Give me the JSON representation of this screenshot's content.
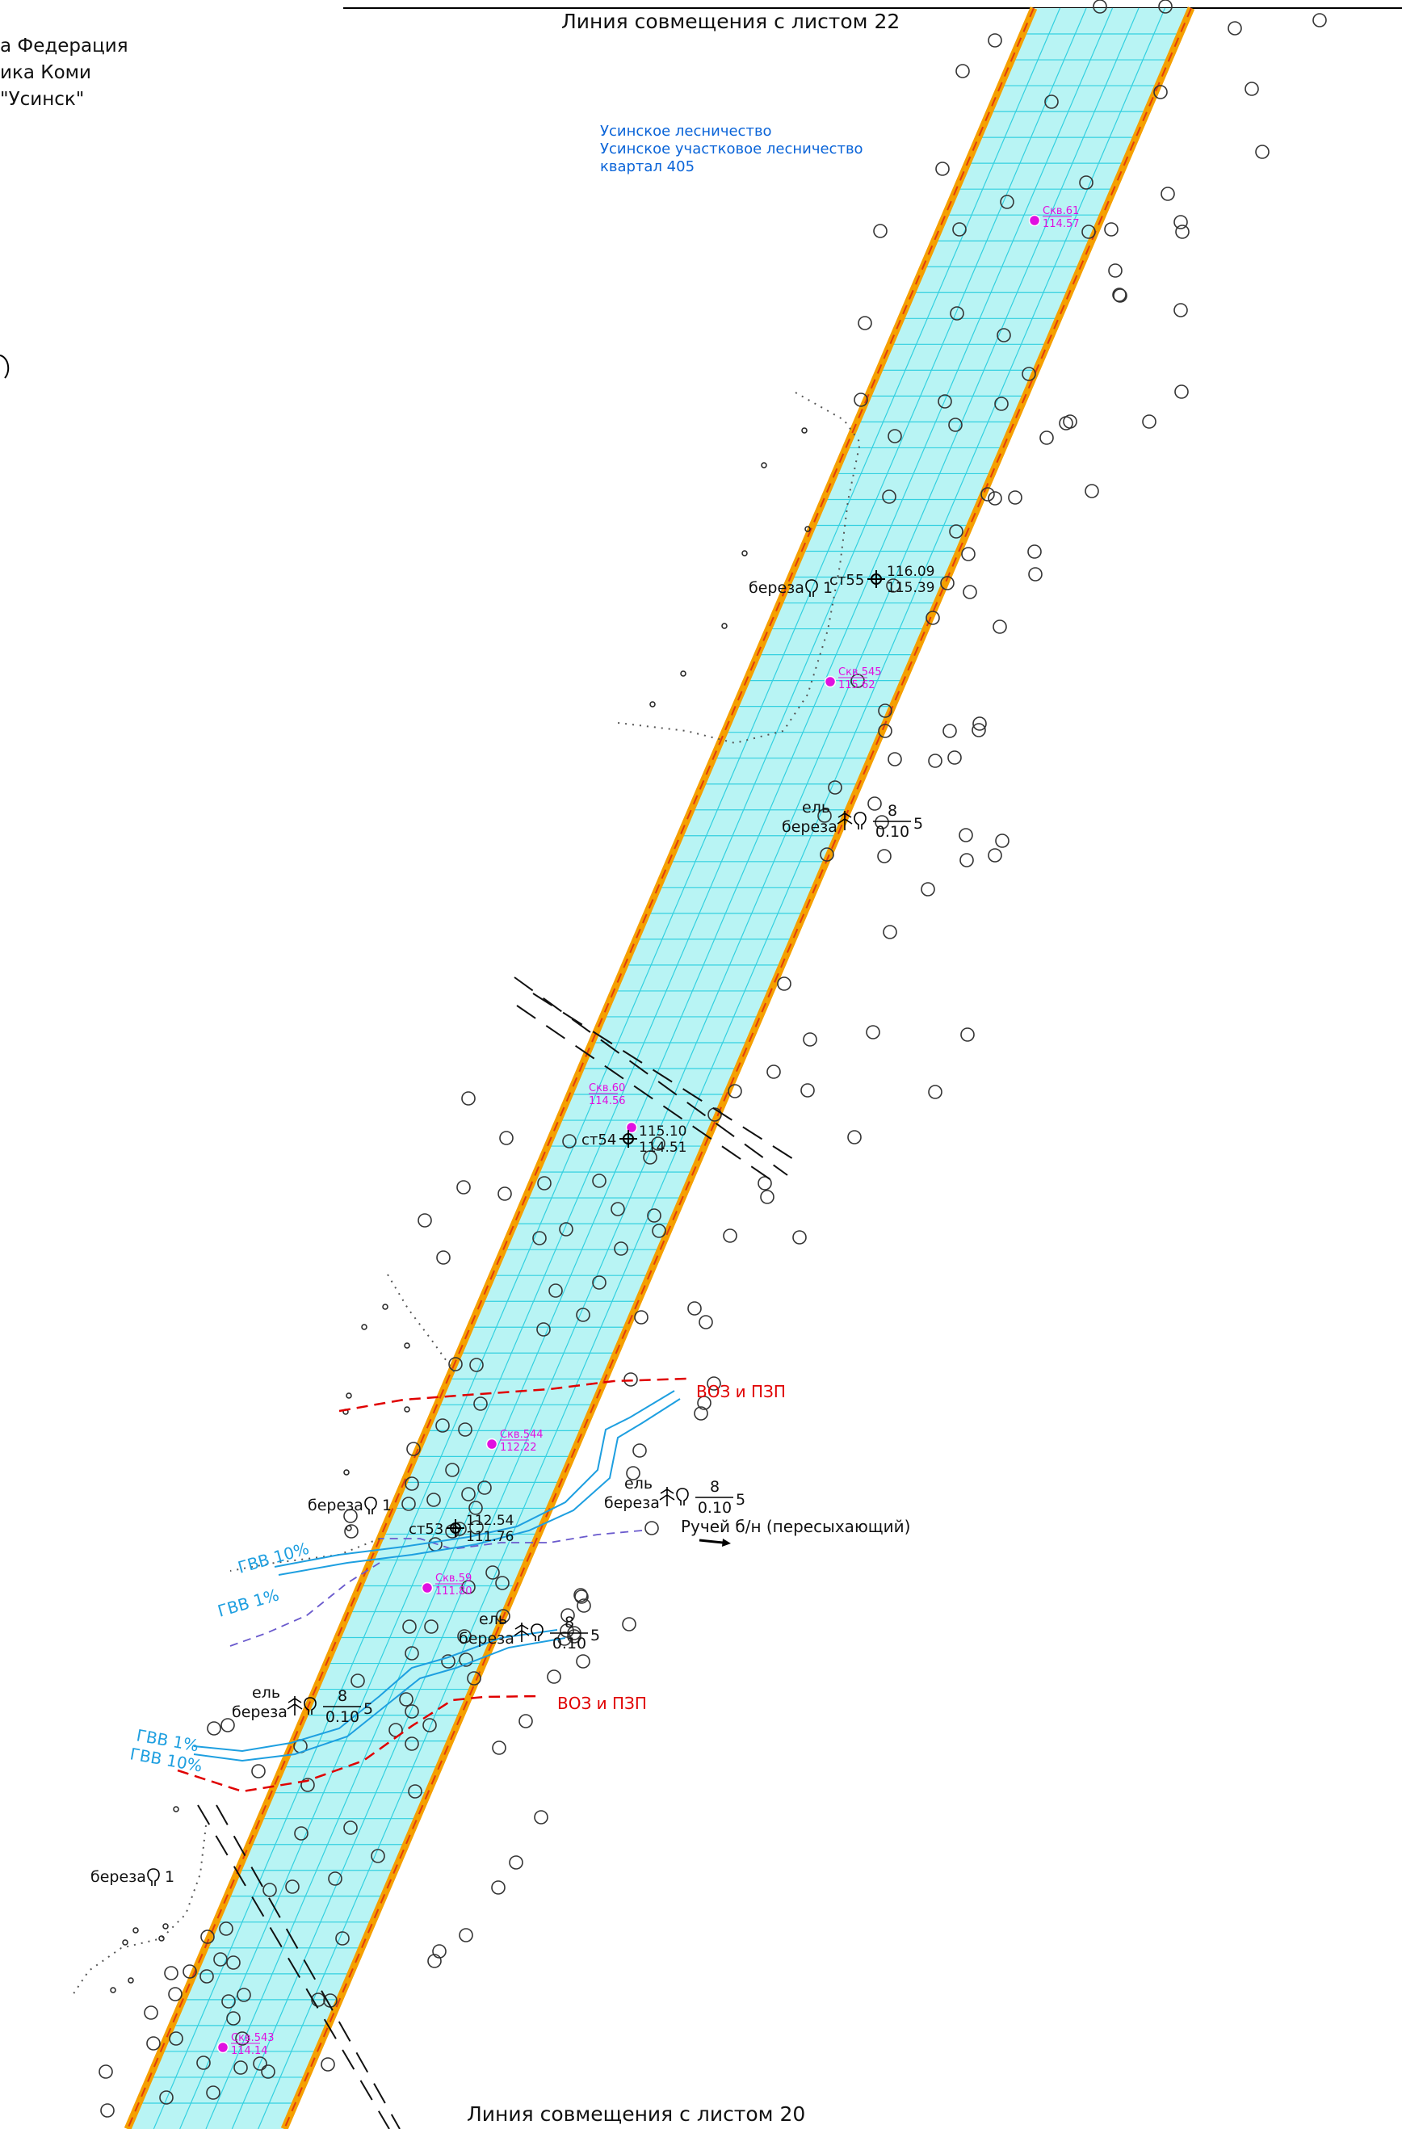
{
  "sheet": {
    "top_match_line": "Линия совмещения с листом 22",
    "bottom_match_line": "Линия совмещения с листом 20",
    "corner_title": [
      "а Федерация",
      "ика Коми",
      "\"Усинск\""
    ]
  },
  "forestry": {
    "line1": "Усинское лесничество",
    "line2": "Усинское участковое лесничество",
    "line3": "квартал 405"
  },
  "wells": [
    {
      "label": "Скв.61",
      "value": "114.57"
    },
    {
      "label": "Скв.545",
      "value": "115.62"
    },
    {
      "label": "Скв.60",
      "value": "114.56"
    },
    {
      "label": "Скв.544",
      "value": "112.22"
    },
    {
      "label": "Скв.59",
      "value": "111.80"
    },
    {
      "label": "Скв.543",
      "value": "114.14"
    }
  ],
  "stations": [
    {
      "label": "ст55",
      "top": "116.09",
      "bottom": "115.39"
    },
    {
      "label": "ст54",
      "top": "115.10",
      "bottom": "114.51"
    },
    {
      "label": "ст53",
      "top": "112.54",
      "bottom": "111.76"
    }
  ],
  "trees": {
    "single_birch": "береза",
    "single_count": "1",
    "mixed_top": "ель",
    "mixed_bottom": "береза",
    "fraction_num": "8",
    "fraction_den": "0.10",
    "fraction_side": "5"
  },
  "zones": {
    "voz_pzp": "ВОЗ и ПЗП",
    "gvv10": "ГВВ 10%",
    "gvv1": "ГВВ 1%"
  },
  "stream": {
    "label": "Ручей б/н (пересыхающий)"
  },
  "colors": {
    "corridor_fill": "#b8f4f4",
    "corridor_grid": "#33d0e0",
    "corridor_edge": "#f5a000",
    "corridor_edge_dash": "#e03c10",
    "well_marker": "#e010e0",
    "boundary_red": "#e00000",
    "flood_blue": "#1e9fe0",
    "forestry_text": "#0a64d8"
  }
}
